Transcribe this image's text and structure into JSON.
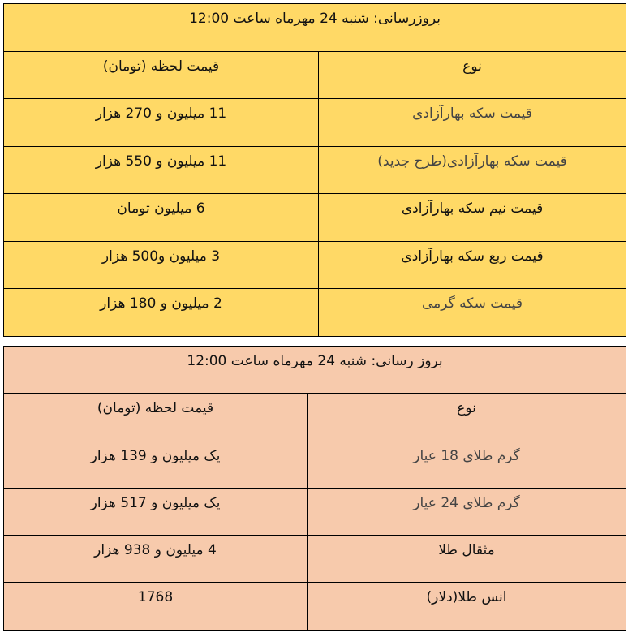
{
  "coin_table": {
    "color": "#FFD966",
    "title": "بروزرسانی: شنبه 24 مهرماه ساعت  12:00",
    "headers": {
      "type": "نوع",
      "price": "قیمت لحظه (تومان)"
    },
    "rows": [
      {
        "type": "قیمت سکه بهارآزادی",
        "price": "11 میلیون و 270  هزار"
      },
      {
        "type": "قیمت سکه بهارآزادی(طرح جدید)",
        "price": "11 میلیون و 550  هزار"
      },
      {
        "type": "قیمت نیم سکه بهارآزادی",
        "price": "6 میلیون تومان"
      },
      {
        "type": "قیمت ربع سکه بهارآزادی",
        "price": "3  میلیون و500  هزار"
      },
      {
        "type": "قیمت سکه گرمی",
        "price": "2 میلیون و 180  هزار"
      }
    ]
  },
  "gold_table": {
    "color": "#F7CAAC",
    "title": "بروز رسانی: شنبه 24 مهرماه ساعت  12:00",
    "headers": {
      "type": "نوع",
      "price": "قیمت لحظه (تومان)"
    },
    "rows": [
      {
        "type": "گرم طلای 18 عیار",
        "price": "یک میلیون و 139  هزار"
      },
      {
        "type": "گرم طلای 24 عیار",
        "price": "یک میلیون و 517  هزار"
      },
      {
        "type": "مثقال طلا",
        "price": "4  میلیون و 938  هزار"
      },
      {
        "type": "انس طلا(دلار)",
        "price": "1768"
      }
    ]
  }
}
